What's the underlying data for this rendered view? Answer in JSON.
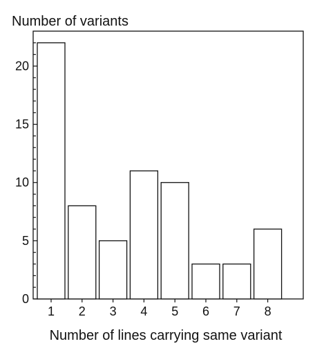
{
  "chart_data": {
    "type": "bar",
    "title": "",
    "ylabel": "Number of variants",
    "xlabel": "Number of lines carrying same variant",
    "categories": [
      "1",
      "2",
      "3",
      "4",
      "5",
      "6",
      "7",
      "8"
    ],
    "values": [
      22,
      8,
      5,
      11,
      10,
      3,
      3,
      6
    ],
    "ylim": [
      0,
      23
    ],
    "yticks": [
      0,
      5,
      10,
      15,
      20
    ],
    "grid": false,
    "legend": "none",
    "colors": {
      "bar_fill": "#ffffff",
      "bar_stroke": "#111111",
      "axis": "#111111",
      "background": "#ffffff"
    }
  }
}
